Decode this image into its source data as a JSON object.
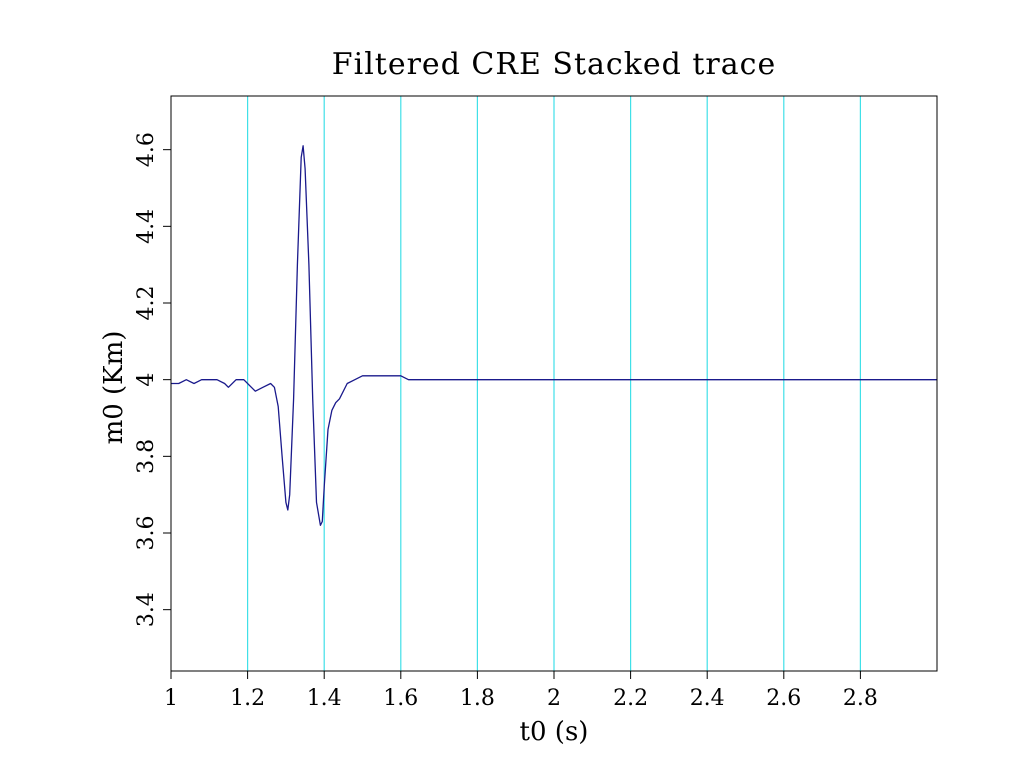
{
  "chart_data": {
    "type": "line",
    "title": "Filtered CRE Stacked trace",
    "xlabel": "t0 (s)",
    "ylabel": "m0 (Km)",
    "xlim": [
      1.0,
      3.0
    ],
    "ylim": [
      3.24,
      4.74
    ],
    "x_ticks": [
      1,
      1.2,
      1.4,
      1.6,
      1.8,
      2,
      2.2,
      2.4,
      2.6,
      2.8
    ],
    "x_tick_labels": [
      "1",
      "1.2",
      "1.4",
      "1.6",
      "1.8",
      "2",
      "2.2",
      "2.4",
      "2.6",
      "2.8"
    ],
    "y_ticks": [
      3.4,
      3.6,
      3.8,
      4.0,
      4.2,
      4.4,
      4.6
    ],
    "y_tick_labels": [
      "3.4",
      "3.6",
      "3.8",
      "4",
      "4.2",
      "4.4",
      "4.6"
    ],
    "vertical_gridlines": [
      1.2,
      1.4,
      1.6,
      1.8,
      2.0,
      2.2,
      2.4,
      2.6,
      2.8
    ],
    "grid": "vertical only",
    "colors": {
      "line": "#1a1a8c",
      "grid": "#40e0e8",
      "frame": "#000000"
    },
    "series": [
      {
        "x": [
          1.0,
          1.01,
          1.02,
          1.04,
          1.06,
          1.08,
          1.1,
          1.12,
          1.14,
          1.15,
          1.17,
          1.19,
          1.21,
          1.22,
          1.24,
          1.26,
          1.27,
          1.28,
          1.29,
          1.3,
          1.305,
          1.31,
          1.32,
          1.33,
          1.34,
          1.345,
          1.35,
          1.36,
          1.37,
          1.38,
          1.39,
          1.395,
          1.4,
          1.41,
          1.42,
          1.43,
          1.44,
          1.46,
          1.48,
          1.5,
          1.52,
          1.55,
          1.6,
          1.62,
          1.65,
          1.7,
          1.8,
          1.9,
          2.0,
          2.1,
          2.2,
          2.3,
          2.4,
          2.5,
          2.6,
          2.7,
          2.8,
          2.9,
          3.0
        ],
        "y": [
          3.99,
          3.99,
          3.99,
          4.0,
          3.99,
          4.0,
          4.0,
          4.0,
          3.99,
          3.98,
          4.0,
          4.0,
          3.98,
          3.97,
          3.98,
          3.99,
          3.98,
          3.93,
          3.8,
          3.68,
          3.66,
          3.7,
          3.95,
          4.3,
          4.58,
          4.61,
          4.55,
          4.3,
          3.95,
          3.68,
          3.62,
          3.63,
          3.72,
          3.87,
          3.92,
          3.94,
          3.95,
          3.99,
          4.0,
          4.01,
          4.01,
          4.01,
          4.01,
          4.0,
          4.0,
          4.0,
          4.0,
          4.0,
          4.0,
          4.0,
          4.0,
          4.0,
          4.0,
          4.0,
          4.0,
          4.0,
          4.0,
          4.0,
          4.0
        ]
      }
    ]
  }
}
